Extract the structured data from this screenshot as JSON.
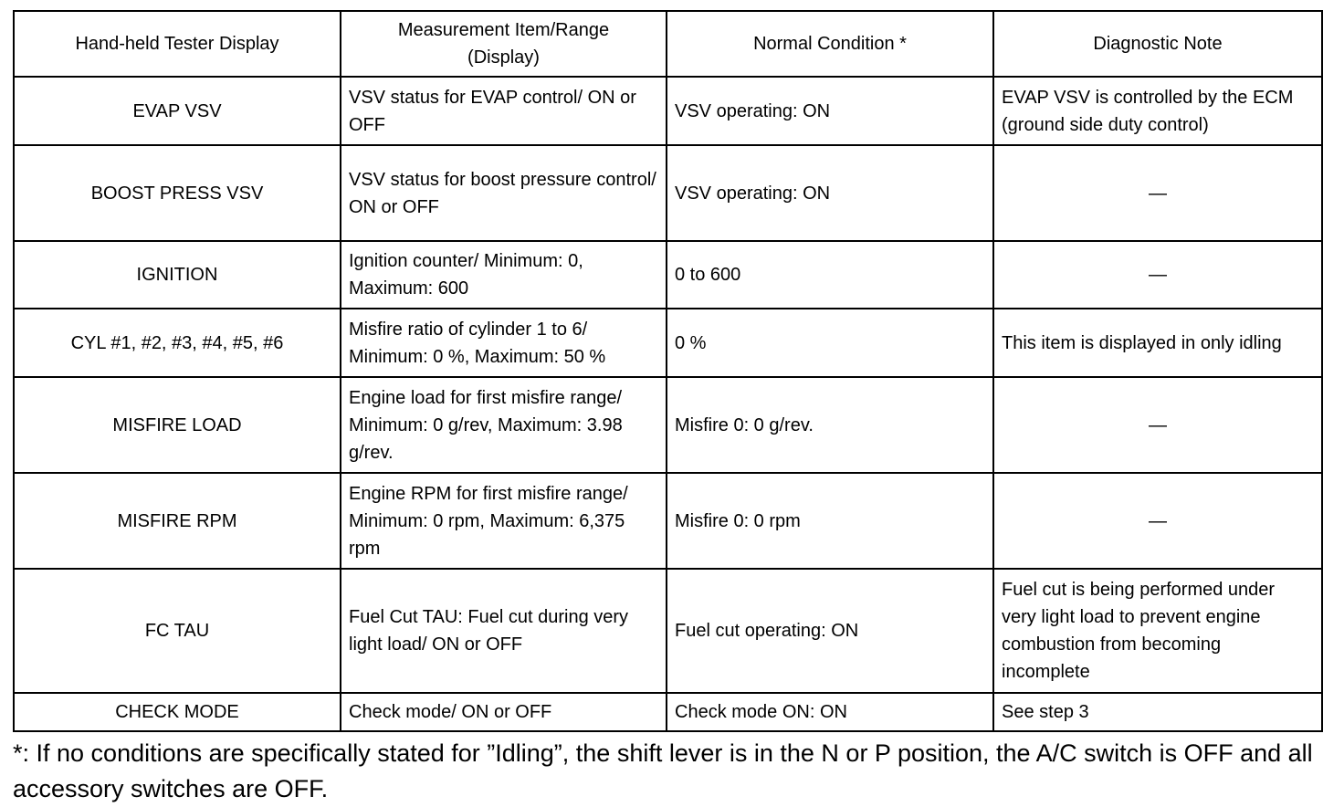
{
  "table": {
    "headers": [
      "Hand-held Tester Display",
      "Measurement Item/Range (Display)",
      "Normal Condition *",
      "Diagnostic Note"
    ],
    "header_lines": {
      "col2": [
        "Measurement Item/Range",
        "(Display)"
      ]
    },
    "rows": [
      {
        "display": "EVAP VSV",
        "item": "VSV status for EVAP control/ ON or OFF",
        "normal": "VSV operating: ON",
        "note": "EVAP VSV is controlled by the ECM (ground side duty control)"
      },
      {
        "display": "BOOST PRESS VSV",
        "item": "VSV status for boost pressure control/ ON or OFF",
        "normal": "VSV operating: ON",
        "note": "—"
      },
      {
        "display": "IGNITION",
        "item": "Ignition counter/ Minimum: 0, Maximum: 600",
        "normal": "0 to 600",
        "note": "—"
      },
      {
        "display": "CYL #1, #2, #3, #4, #5, #6",
        "item": "Misfire ratio of cylinder 1 to 6/ Minimum: 0 %, Maximum: 50 %",
        "normal": "0 %",
        "note": "This item is displayed in only idling"
      },
      {
        "display": "MISFIRE LOAD",
        "item": "Engine load for first misfire range/ Minimum: 0 g/rev, Maximum: 3.98 g/rev.",
        "normal": "Misfire 0: 0 g/rev.",
        "note": "—"
      },
      {
        "display": "MISFIRE RPM",
        "item": "Engine RPM for first misfire range/ Minimum: 0 rpm, Maximum: 6,375 rpm",
        "normal": "Misfire 0: 0 rpm",
        "note": "—"
      },
      {
        "display": "FC TAU",
        "item": "Fuel Cut TAU: Fuel cut during very light load/ ON or OFF",
        "normal": "Fuel cut operating: ON",
        "note": "Fuel cut is being performed under very light load to prevent engine combustion from becoming incomplete"
      },
      {
        "display": "CHECK MODE",
        "item": "Check mode/ ON or OFF",
        "normal": "Check mode ON: ON",
        "note": "See step 3"
      }
    ]
  },
  "footnote": "*: If no conditions are specifically stated for ”Idling”, the shift lever is in the N or P position, the A/C switch is OFF and all accessory switches are OFF."
}
